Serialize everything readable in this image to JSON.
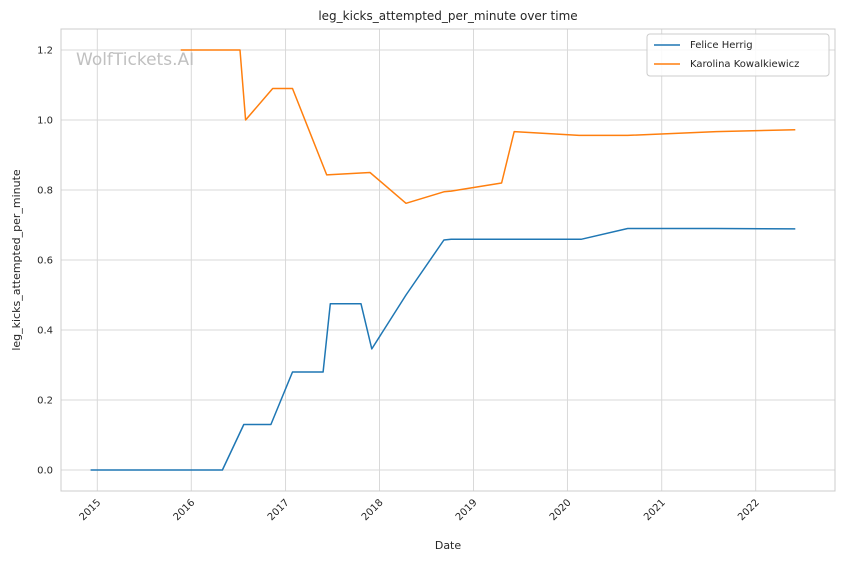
{
  "watermark": "WolfTickets.AI",
  "chart_data": {
    "type": "line",
    "title": "leg_kicks_attempted_per_minute over time",
    "xlabel": "Date",
    "ylabel": "leg_kicks_attempted_per_minute",
    "xlim": [
      "2014-08-13",
      "2022-11-05"
    ],
    "ylim": [
      -0.06,
      1.26
    ],
    "x_ticks": [
      "2015",
      "2016",
      "2017",
      "2018",
      "2019",
      "2020",
      "2021",
      "2022"
    ],
    "y_ticks": [
      "0.0",
      "0.2",
      "0.4",
      "0.6",
      "0.8",
      "1.0",
      "1.2"
    ],
    "grid": true,
    "legend": "top-right",
    "series": [
      {
        "name": "Felice Herrig",
        "color": "#1f77b4",
        "x": [
          "2014-12-06",
          "2016-05-01",
          "2016-07-23",
          "2016-11-05",
          "2017-01-28",
          "2017-05-27",
          "2017-06-24",
          "2017-10-21",
          "2017-12-02",
          "2018-04-14",
          "2018-09-08",
          "2018-10-06",
          "2020-02-23",
          "2020-08-22",
          "2021-08-01",
          "2022-06-04"
        ],
        "values": [
          0.0,
          0.0,
          0.13,
          0.13,
          0.28,
          0.28,
          0.475,
          0.475,
          0.346,
          0.5,
          0.657,
          0.659,
          0.659,
          0.69,
          0.69,
          0.689
        ]
      },
      {
        "name": "Karolina Kowalkiewicz",
        "color": "#ff7f0e",
        "x": [
          "2015-11-21",
          "2016-07-08",
          "2016-07-30",
          "2016-11-12",
          "2017-01-28",
          "2017-06-10",
          "2017-11-25",
          "2018-04-14",
          "2018-09-08",
          "2018-10-06",
          "2019-04-20",
          "2019-06-08",
          "2020-02-15",
          "2020-08-22",
          "2021-08-01",
          "2022-06-04"
        ],
        "values": [
          1.2,
          1.2,
          1.0,
          1.09,
          1.09,
          0.843,
          0.85,
          0.762,
          0.795,
          0.797,
          0.82,
          0.967,
          0.956,
          0.956,
          0.967,
          0.972
        ]
      }
    ]
  }
}
